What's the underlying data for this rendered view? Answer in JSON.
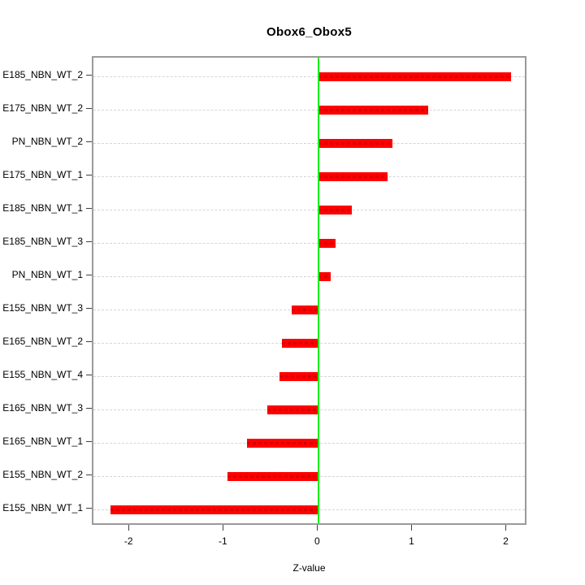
{
  "chart_data": {
    "type": "bar",
    "orientation": "horizontal",
    "title": "Obox6_Obox5",
    "xlabel": "Z-value",
    "ylabel": "",
    "xlim": [
      -2.39,
      2.22
    ],
    "x_ticks": [
      "-2",
      "-1",
      "0",
      "1",
      "2"
    ],
    "x_tick_values": [
      -2,
      -1,
      0,
      1,
      2
    ],
    "grid": "dashed-horizontal",
    "legend": "none",
    "categories": [
      "E185_NBN_WT_2",
      "E175_NBN_WT_2",
      "PN_NBN_WT_2",
      "E175_NBN_WT_1",
      "E185_NBN_WT_1",
      "E185_NBN_WT_3",
      "PN_NBN_WT_1",
      "E155_NBN_WT_3",
      "E165_NBN_WT_2",
      "E155_NBN_WT_4",
      "E165_NBN_WT_3",
      "E165_NBN_WT_1",
      "E155_NBN_WT_2",
      "E155_NBN_WT_1"
    ],
    "values": [
      2.04,
      1.16,
      0.78,
      0.73,
      0.35,
      0.18,
      0.13,
      -0.29,
      -0.39,
      -0.42,
      -0.55,
      -0.76,
      -0.97,
      -2.21
    ],
    "colors": {
      "bar": "#ff0000",
      "bar_dash_overlay": "rgba(170,0,0,0.45)",
      "zero_line": "#15f015",
      "gridline": "#d4d4d4",
      "box_border": "#9a9a9a",
      "text": "#000000"
    }
  }
}
